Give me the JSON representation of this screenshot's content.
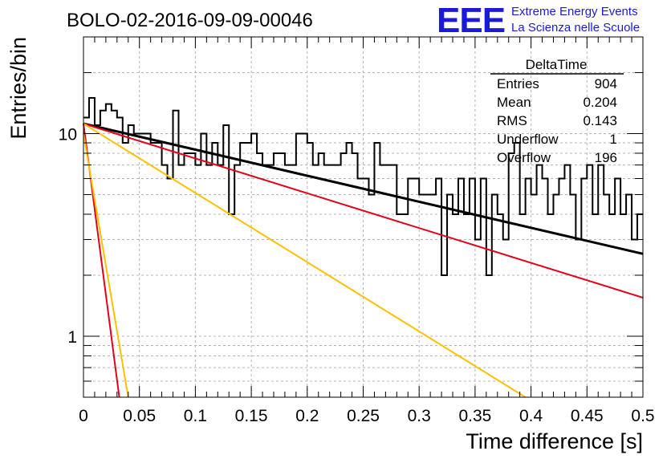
{
  "header": {
    "run_title": "BOLO-02-2016-09-09-00046",
    "logo_text": "EEE",
    "logo_line1": "Extreme Energy Events",
    "logo_line2": "La Scienza nelle Scuole"
  },
  "colors": {
    "logo": "#1a1adb",
    "histogram": "#000000",
    "fit_total": "#000000",
    "fit_component_red": "#e3001b",
    "fit_component_orange": "#ffc000",
    "grid": "#b4b4b4"
  },
  "stats_box": {
    "title": "DeltaTime",
    "rows": [
      {
        "label": "Entries",
        "value": "904"
      },
      {
        "label": "Mean",
        "value": "0.204"
      },
      {
        "label": "RMS",
        "value": "0.143"
      },
      {
        "label": "Underflow",
        "value": "1"
      },
      {
        "label": "Overflow",
        "value": "196"
      }
    ]
  },
  "chart_data": {
    "type": "bar",
    "style": "step-histogram",
    "xlabel": "Time difference [s]",
    "ylabel": "Entries/bin",
    "xlim": [
      0,
      0.5
    ],
    "ylim": [
      0.5,
      30
    ],
    "yscale": "log",
    "grid": true,
    "x_ticks": [
      "0",
      "0.05",
      "0.1",
      "0.15",
      "0.2",
      "0.25",
      "0.3",
      "0.35",
      "0.4",
      "0.45",
      "0.5"
    ],
    "y_ticks": [
      "1",
      "10"
    ],
    "y_tick_values": [
      1,
      10
    ],
    "x_tick_values": [
      0,
      0.05,
      0.1,
      0.15,
      0.2,
      0.25,
      0.3,
      0.35,
      0.4,
      0.45,
      0.5
    ],
    "bin_width": 0.005,
    "counts": [
      12,
      15,
      11,
      13,
      14,
      13,
      12,
      9,
      11,
      10,
      10,
      10,
      9,
      9,
      7,
      6,
      13,
      7,
      8,
      8,
      7,
      10,
      7,
      9,
      7,
      11,
      4,
      7,
      9,
      9,
      10,
      8,
      7,
      7,
      8,
      8,
      7,
      7,
      10,
      10,
      9,
      7,
      8,
      7,
      7,
      7,
      8,
      9,
      8,
      6,
      6,
      5,
      9,
      7,
      7,
      7,
      4,
      4,
      6,
      6,
      5,
      5,
      5,
      6,
      2,
      5,
      4,
      6,
      4,
      6,
      3,
      6,
      2,
      5,
      4,
      3,
      8,
      9,
      4,
      6,
      5,
      7,
      6,
      4,
      5,
      6,
      7,
      5,
      3,
      6,
      7,
      4,
      7,
      5,
      4,
      6,
      4,
      5,
      3,
      4
    ],
    "fit_lines": [
      {
        "color": "black",
        "points": [
          [
            0,
            11.2
          ],
          [
            0.5,
            2.55
          ]
        ]
      },
      {
        "color": "red",
        "points": [
          [
            0,
            11.2
          ],
          [
            0.5,
            1.55
          ]
        ]
      },
      {
        "color": "orange",
        "points": [
          [
            0,
            11.2
          ],
          [
            0.395,
            0.5
          ]
        ]
      },
      {
        "color": "red",
        "points": [
          [
            0,
            11.2
          ],
          [
            0.032,
            0.5
          ]
        ]
      },
      {
        "color": "orange",
        "points": [
          [
            0,
            10.0
          ],
          [
            0.04,
            0.5
          ]
        ]
      }
    ]
  }
}
